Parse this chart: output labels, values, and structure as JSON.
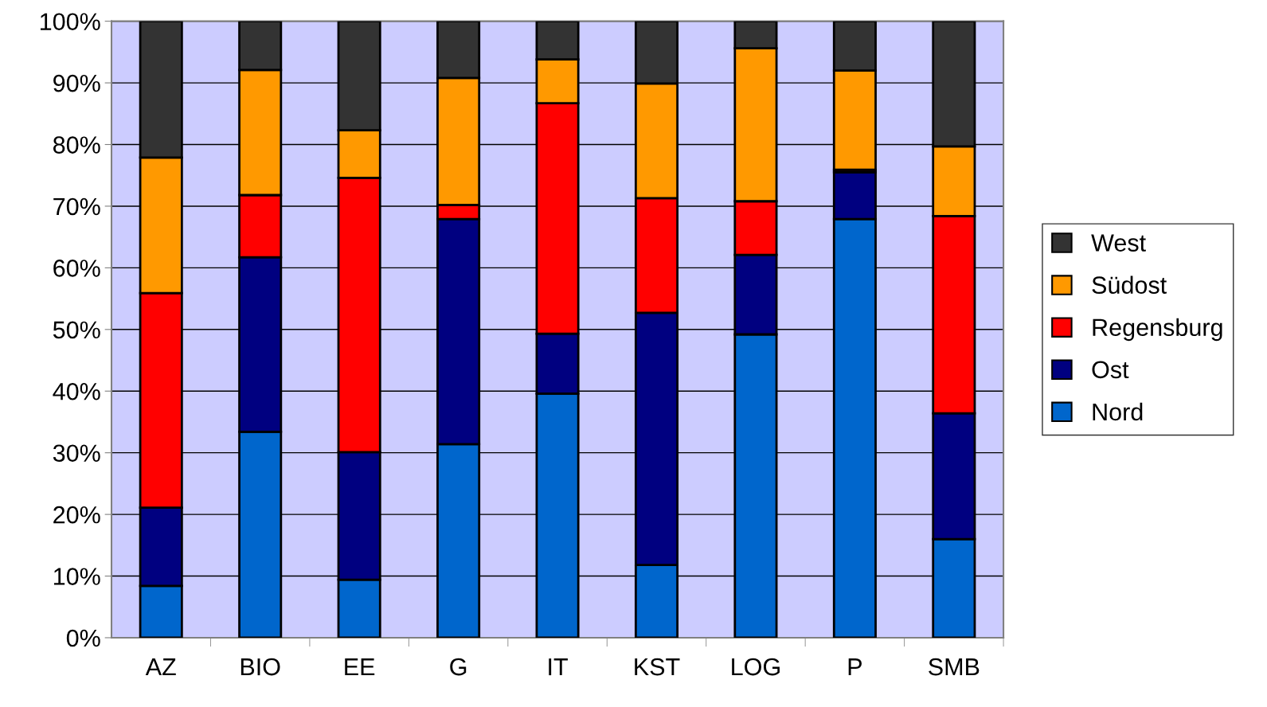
{
  "chart_data": {
    "type": "bar",
    "stacked": true,
    "categories": [
      "AZ",
      "BIO",
      "EE",
      "G",
      "IT",
      "KST",
      "LOG",
      "P",
      "SMB"
    ],
    "series": [
      {
        "name": "Nord",
        "color": "#0066cc",
        "values": [
          8.4,
          33.4,
          9.4,
          31.4,
          39.6,
          11.8,
          49.2,
          67.9,
          16.0
        ]
      },
      {
        "name": "Ost",
        "color": "#000080",
        "values": [
          12.7,
          28.3,
          20.7,
          36.5,
          9.7,
          40.9,
          12.9,
          7.6,
          20.4
        ]
      },
      {
        "name": "Regensburg",
        "color": "#ff0000",
        "values": [
          34.8,
          10.1,
          44.5,
          2.3,
          37.4,
          18.6,
          8.7,
          0.4,
          32.0
        ]
      },
      {
        "name": "Südost",
        "color": "#ff9900",
        "values": [
          22.0,
          20.3,
          7.7,
          20.6,
          7.1,
          18.6,
          24.8,
          16.1,
          11.3
        ]
      },
      {
        "name": "West",
        "color": "#333333",
        "values": [
          22.1,
          7.9,
          17.7,
          9.2,
          6.2,
          10.1,
          4.4,
          8.0,
          20.3
        ]
      }
    ],
    "ylim": [
      0,
      100
    ],
    "yticks": [
      {
        "value": 0,
        "label": "0%"
      },
      {
        "value": 10,
        "label": "10%"
      },
      {
        "value": 20,
        "label": "20%"
      },
      {
        "value": 30,
        "label": "30%"
      },
      {
        "value": 40,
        "label": "40%"
      },
      {
        "value": 50,
        "label": "50%"
      },
      {
        "value": 60,
        "label": "60%"
      },
      {
        "value": 70,
        "label": "70%"
      },
      {
        "value": 80,
        "label": "80%"
      },
      {
        "value": 90,
        "label": "90%"
      },
      {
        "value": 100,
        "label": "100%"
      }
    ],
    "grid": "y",
    "legend": "right"
  }
}
